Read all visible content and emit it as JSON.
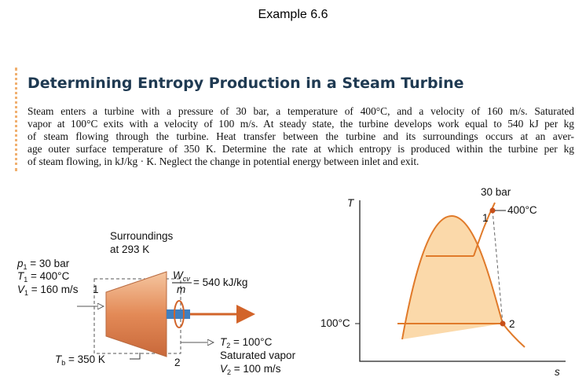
{
  "header": {
    "title": "Example 6.6"
  },
  "heading": "Determining Entropy Production in a Steam Turbine",
  "paragraph_lines": [
    "Steam enters a turbine with a pressure of 30 bar, a temperature of 400°C, and a velocity of 160 m/s. Saturated",
    "vapor at 100°C exits with a velocity of 100 m/s. At steady state, the turbine develops work equal to 540 kJ per kg",
    "of steam flowing through the turbine. Heat transfer between the turbine and its surroundings occurs at an aver-",
    "age outer surface temperature of 350 K. Determine the rate at which entropy is produced within the turbine per kg",
    "of steam flowing, in kJ/kg · K. Neglect the change in potential energy between inlet and exit."
  ],
  "turbine": {
    "surroundings": [
      "Surroundings",
      "at 293 K"
    ],
    "inlet": [
      {
        "symbol": "p",
        "sub": "1",
        "text": " = 30 bar"
      },
      {
        "symbol": "T",
        "sub": "1",
        "text": " = 400°C"
      },
      {
        "symbol": "V",
        "sub": "1",
        "text": " = 160 m/s"
      }
    ],
    "inlet_state": "1",
    "outlet_state": "2",
    "work": {
      "numerator": "W",
      "sub": "cv",
      "denominator": "m",
      "text": " = 540 kJ/kg"
    },
    "boundary": {
      "symbol": "T",
      "sub": "b",
      "text": " = 350 K"
    },
    "outlet": [
      {
        "symbol": "T",
        "sub": "2",
        "text": " = 100°C"
      },
      {
        "symbol": "",
        "sub": "",
        "text": "Saturated vapor"
      },
      {
        "symbol": "V",
        "sub": "2",
        "text": " = 100 m/s"
      }
    ]
  },
  "ts_diagram": {
    "y_axis": "T",
    "x_axis": "s",
    "pressure": "30 bar",
    "t1": "400°C",
    "t2": "100°C",
    "state1": "1",
    "state2": "2"
  }
}
